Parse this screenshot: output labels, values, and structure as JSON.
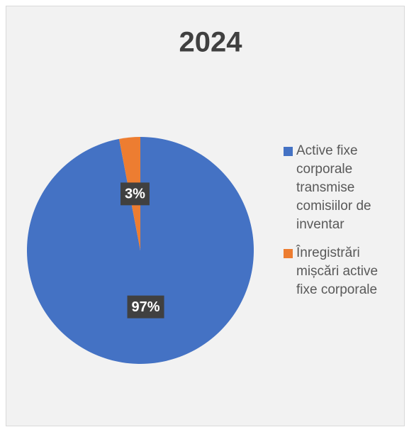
{
  "chart_data": {
    "type": "pie",
    "title": "2024",
    "categories": [
      "Active fixe corporale transmise comisiilor de inventar",
      "Înregistrări mișcări active fixe corporale"
    ],
    "values": [
      97,
      3
    ],
    "value_labels": [
      "97%",
      "3%"
    ],
    "colors": [
      "#4472c4",
      "#ed7d31"
    ],
    "legend": "right"
  }
}
